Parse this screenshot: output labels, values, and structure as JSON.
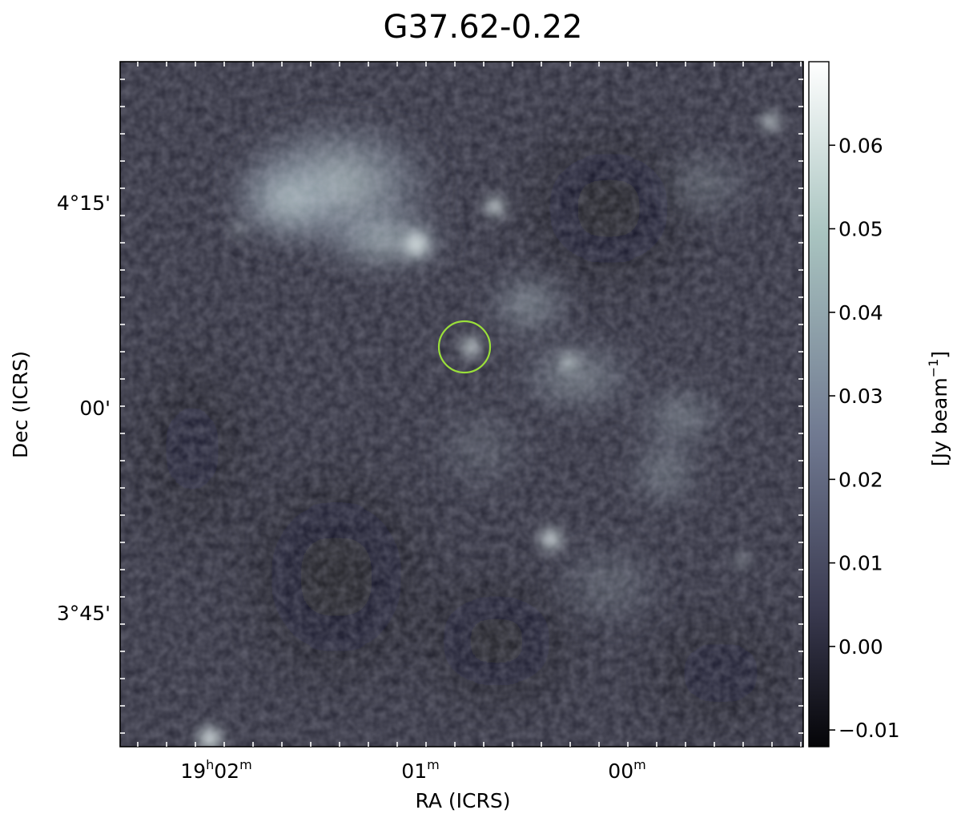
{
  "title": "G37.62-0.22",
  "axes": {
    "xlabel": "RA (ICRS)",
    "ylabel": "Dec (ICRS)",
    "x_ticks": [
      {
        "base": "19",
        "h": "h",
        "mid": "02",
        "m": "m"
      },
      {
        "base": "",
        "h": "",
        "mid": "01",
        "m": "m"
      },
      {
        "base": "",
        "h": "",
        "mid": "00",
        "m": "m"
      }
    ],
    "y_ticks": [
      "4°15'",
      "00'",
      "3°45'"
    ]
  },
  "colorbar": {
    "label_prefix": "[Jy beam",
    "label_exp": "−1",
    "label_suffix": "]",
    "range": [
      -0.012,
      0.07
    ],
    "ticks": [
      {
        "value": 0.06,
        "label": "0.06"
      },
      {
        "value": 0.05,
        "label": "0.05"
      },
      {
        "value": 0.04,
        "label": "0.04"
      },
      {
        "value": 0.03,
        "label": "0.03"
      },
      {
        "value": 0.02,
        "label": "0.02"
      },
      {
        "value": 0.01,
        "label": "0.01"
      },
      {
        "value": 0.0,
        "label": "0.00"
      },
      {
        "value": -0.01,
        "label": "−0.01"
      }
    ],
    "colors": [
      "#050508",
      "#3a3a50",
      "#6f7890",
      "#a9c4c0",
      "#ffffff"
    ]
  },
  "marker": {
    "shape": "circle",
    "color": "#9adf3a"
  }
}
